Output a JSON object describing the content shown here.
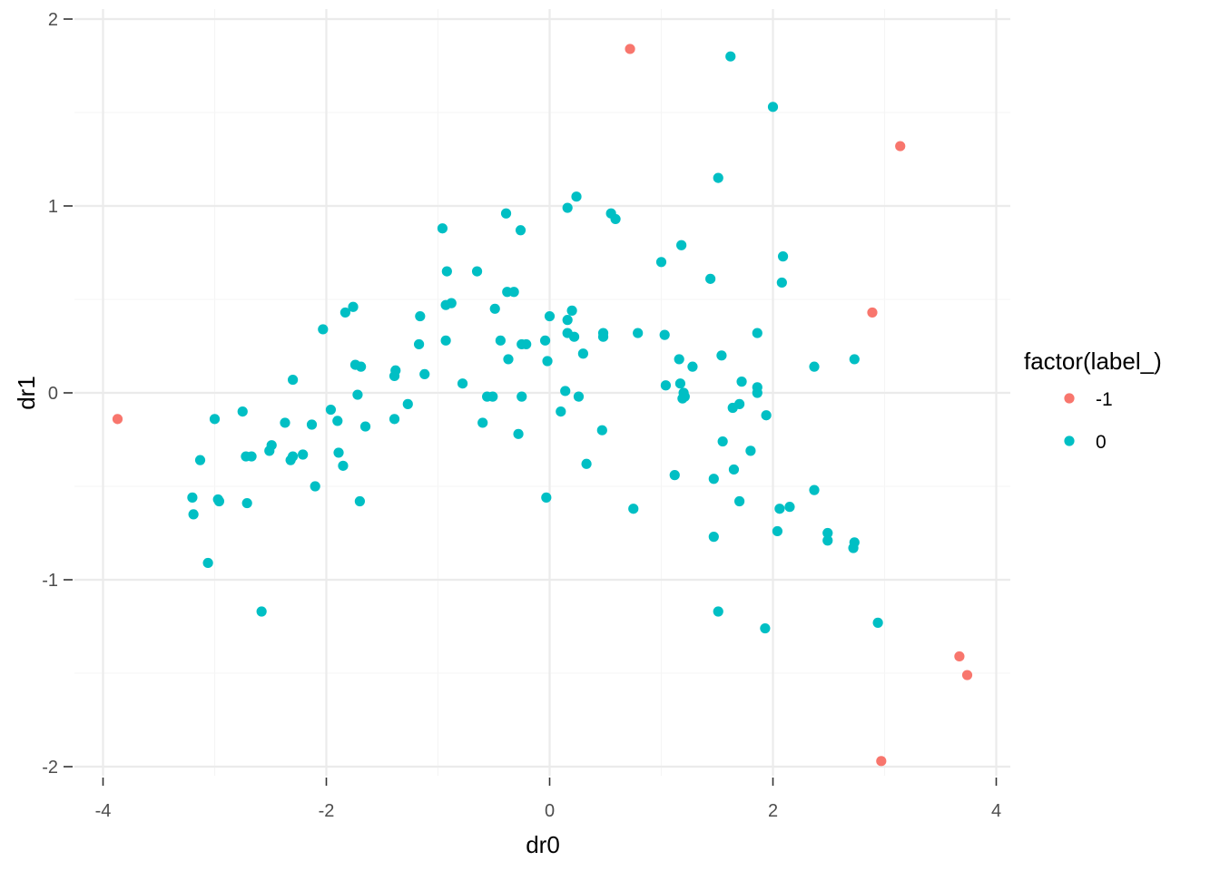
{
  "chart_data": {
    "type": "scatter",
    "xlabel": "dr0",
    "ylabel": "dr1",
    "xlim": [
      -4,
      4
    ],
    "ylim": [
      -2,
      2
    ],
    "x_ticks": [
      -4,
      -2,
      0,
      2,
      4
    ],
    "y_ticks": [
      -2,
      -1,
      0,
      1,
      2
    ],
    "x_tick_labels": [
      "-4",
      "-2",
      "0",
      "2",
      "4"
    ],
    "y_tick_labels": [
      "-2",
      "-1",
      "0",
      "1",
      "2"
    ],
    "grid": true,
    "legend": {
      "title": "factor(label_)",
      "placement": "right",
      "entries": [
        {
          "label": "-1",
          "color": "#F8766D"
        },
        {
          "label": "0",
          "color": "#00BFC4"
        }
      ]
    },
    "series": [
      {
        "name": "-1",
        "color": "#F8766D",
        "points": [
          [
            -3.87,
            -0.14
          ],
          [
            0.72,
            1.84
          ],
          [
            3.14,
            1.32
          ],
          [
            2.89,
            0.43
          ],
          [
            3.67,
            -1.41
          ],
          [
            3.74,
            -1.51
          ],
          [
            2.97,
            -1.97
          ]
        ]
      },
      {
        "name": "0",
        "color": "#00BFC4",
        "points": [
          [
            1.62,
            1.8
          ],
          [
            2.0,
            1.53
          ],
          [
            1.51,
            1.15
          ],
          [
            0.24,
            1.05
          ],
          [
            0.16,
            0.99
          ],
          [
            0.55,
            0.96
          ],
          [
            0.59,
            0.93
          ],
          [
            -0.39,
            0.96
          ],
          [
            -0.26,
            0.87
          ],
          [
            -0.96,
            0.88
          ],
          [
            1.18,
            0.79
          ],
          [
            2.09,
            0.73
          ],
          [
            1.0,
            0.7
          ],
          [
            -0.92,
            0.65
          ],
          [
            -0.65,
            0.65
          ],
          [
            1.44,
            0.61
          ],
          [
            2.08,
            0.59
          ],
          [
            -0.38,
            0.54
          ],
          [
            -0.32,
            0.54
          ],
          [
            -0.88,
            0.48
          ],
          [
            -0.93,
            0.47
          ],
          [
            -1.76,
            0.46
          ],
          [
            -0.49,
            0.45
          ],
          [
            0.2,
            0.44
          ],
          [
            -1.83,
            0.43
          ],
          [
            -1.16,
            0.41
          ],
          [
            0.0,
            0.41
          ],
          [
            0.16,
            0.39
          ],
          [
            -2.03,
            0.34
          ],
          [
            1.86,
            0.32
          ],
          [
            0.48,
            0.32
          ],
          [
            0.16,
            0.32
          ],
          [
            0.79,
            0.32
          ],
          [
            1.03,
            0.31
          ],
          [
            0.22,
            0.3
          ],
          [
            0.48,
            0.3
          ],
          [
            -0.04,
            0.28
          ],
          [
            -0.93,
            0.28
          ],
          [
            -0.44,
            0.28
          ],
          [
            -0.25,
            0.26
          ],
          [
            -0.21,
            0.26
          ],
          [
            -1.17,
            0.26
          ],
          [
            0.3,
            0.21
          ],
          [
            1.54,
            0.2
          ],
          [
            1.16,
            0.18
          ],
          [
            2.73,
            0.18
          ],
          [
            -0.37,
            0.18
          ],
          [
            -0.02,
            0.17
          ],
          [
            -1.74,
            0.15
          ],
          [
            -1.69,
            0.14
          ],
          [
            1.28,
            0.14
          ],
          [
            2.37,
            0.14
          ],
          [
            -1.38,
            0.12
          ],
          [
            -1.12,
            0.1
          ],
          [
            -1.39,
            0.09
          ],
          [
            -2.3,
            0.07
          ],
          [
            1.72,
            0.06
          ],
          [
            -0.78,
            0.05
          ],
          [
            1.17,
            0.05
          ],
          [
            1.04,
            0.04
          ],
          [
            1.86,
            0.03
          ],
          [
            0.14,
            0.01
          ],
          [
            1.2,
            0.0
          ],
          [
            1.86,
            0.0
          ],
          [
            -1.72,
            -0.01
          ],
          [
            1.21,
            -0.02
          ],
          [
            0.26,
            -0.02
          ],
          [
            -0.56,
            -0.02
          ],
          [
            -0.51,
            -0.02
          ],
          [
            -0.25,
            -0.02
          ],
          [
            1.19,
            -0.03
          ],
          [
            -1.27,
            -0.06
          ],
          [
            1.7,
            -0.06
          ],
          [
            -1.96,
            -0.09
          ],
          [
            1.64,
            -0.08
          ],
          [
            -2.75,
            -0.1
          ],
          [
            0.1,
            -0.1
          ],
          [
            1.94,
            -0.12
          ],
          [
            -1.39,
            -0.14
          ],
          [
            -3.0,
            -0.14
          ],
          [
            -1.9,
            -0.15
          ],
          [
            -2.37,
            -0.16
          ],
          [
            -0.6,
            -0.16
          ],
          [
            -2.13,
            -0.17
          ],
          [
            -1.65,
            -0.18
          ],
          [
            0.47,
            -0.2
          ],
          [
            -0.28,
            -0.22
          ],
          [
            1.55,
            -0.26
          ],
          [
            -2.49,
            -0.28
          ],
          [
            -2.51,
            -0.31
          ],
          [
            -1.89,
            -0.32
          ],
          [
            -2.21,
            -0.33
          ],
          [
            -2.3,
            -0.34
          ],
          [
            -2.32,
            -0.36
          ],
          [
            -2.72,
            -0.34
          ],
          [
            -2.67,
            -0.34
          ],
          [
            1.8,
            -0.31
          ],
          [
            -3.13,
            -0.36
          ],
          [
            0.33,
            -0.38
          ],
          [
            -1.85,
            -0.39
          ],
          [
            1.65,
            -0.41
          ],
          [
            1.12,
            -0.44
          ],
          [
            1.47,
            -0.46
          ],
          [
            -2.1,
            -0.5
          ],
          [
            2.37,
            -0.52
          ],
          [
            -0.03,
            -0.56
          ],
          [
            -3.2,
            -0.56
          ],
          [
            -2.97,
            -0.57
          ],
          [
            -2.96,
            -0.58
          ],
          [
            -2.71,
            -0.59
          ],
          [
            -1.7,
            -0.58
          ],
          [
            1.7,
            -0.58
          ],
          [
            2.06,
            -0.62
          ],
          [
            2.15,
            -0.61
          ],
          [
            0.75,
            -0.62
          ],
          [
            -3.19,
            -0.65
          ],
          [
            2.04,
            -0.74
          ],
          [
            2.49,
            -0.75
          ],
          [
            1.47,
            -0.77
          ],
          [
            2.49,
            -0.79
          ],
          [
            2.73,
            -0.8
          ],
          [
            2.72,
            -0.83
          ],
          [
            -3.06,
            -0.91
          ],
          [
            -2.58,
            -1.17
          ],
          [
            1.51,
            -1.17
          ],
          [
            2.94,
            -1.23
          ],
          [
            1.93,
            -1.26
          ]
        ]
      }
    ]
  }
}
